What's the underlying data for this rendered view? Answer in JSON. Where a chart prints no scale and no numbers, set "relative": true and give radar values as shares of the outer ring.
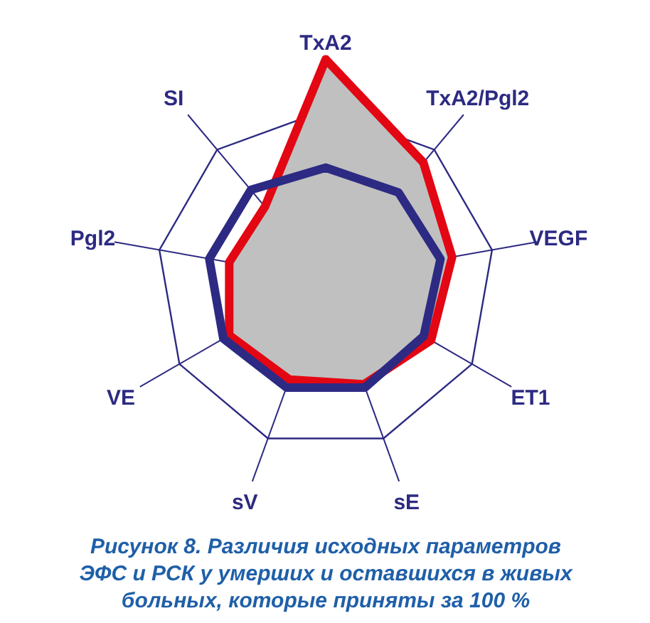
{
  "chart_data": {
    "type": "radar",
    "relative": true,
    "grid": true,
    "title": "Рисунок 8. Различия исходных параметров ЭФС и РСК у умерших и оставшихся в живых больных, которые приняты за 100 %",
    "categories": [
      "TxA2",
      "TxA2/Pgl2",
      "VEGF",
      "ET1",
      "sE",
      "sV",
      "VE",
      "Pgl2",
      "SI"
    ],
    "series": [
      {
        "type": "area",
        "color": "#e30613",
        "values": [
          1.3,
          0.9,
          0.76,
          0.72,
          0.66,
          0.63,
          0.66,
          0.58,
          0.56
        ]
      },
      {
        "color": "#2d2a83",
        "values": [
          0.66,
          0.67,
          0.69,
          0.67,
          0.68,
          0.68,
          0.7,
          0.7,
          0.69
        ]
      }
    ]
  }
}
